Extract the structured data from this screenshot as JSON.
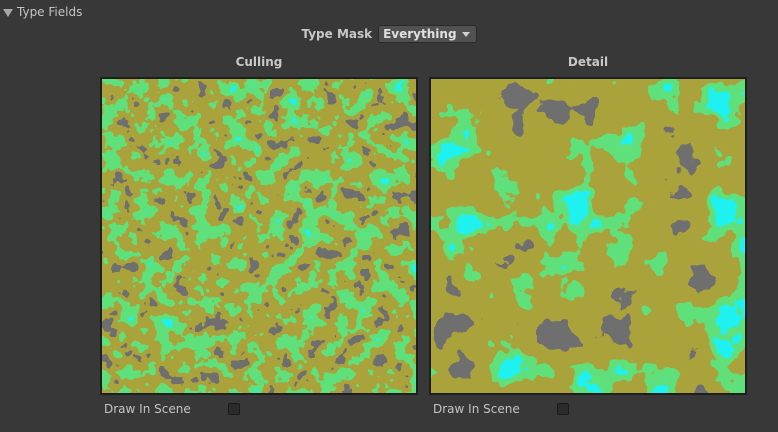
{
  "foldout": {
    "label": "Type Fields",
    "expanded": true,
    "icon": "triangle-down-icon"
  },
  "type_mask": {
    "label": "Type Mask",
    "value": "Everything",
    "icon": "caret-down-icon"
  },
  "previews": [
    {
      "title": "Culling",
      "draw_in_scene_label": "Draw In Scene",
      "draw_in_scene": false,
      "scale": "fine"
    },
    {
      "title": "Detail",
      "draw_in_scene_label": "Draw In Scene",
      "draw_in_scene": false,
      "scale": "coarse"
    }
  ],
  "colors": {
    "background": "#383838",
    "gray": "#6f6f6f",
    "olive": "#aaa33b",
    "cyan": "#1ff0f0",
    "green": "#5fe07a"
  }
}
